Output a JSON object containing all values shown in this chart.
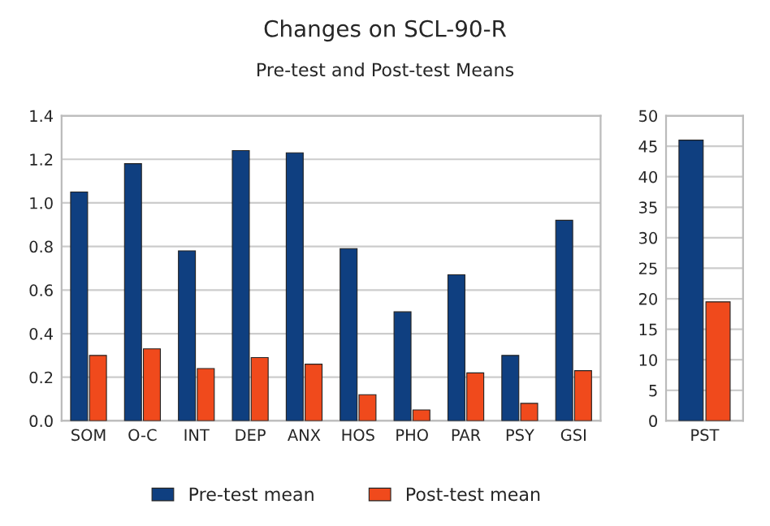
{
  "chart_data": [
    {
      "type": "bar",
      "title": "Changes on SCL-90-R",
      "subtitle": "Pre-test and Post-test Means",
      "categories": [
        "SOM",
        "O-C",
        "INT",
        "DEP",
        "ANX",
        "HOS",
        "PHO",
        "PAR",
        "PSY",
        "GSI"
      ],
      "series": [
        {
          "name": "Pre-test mean",
          "color": "#0f3f80",
          "values": [
            1.05,
            1.18,
            0.78,
            1.24,
            1.23,
            0.79,
            0.5,
            0.67,
            0.3,
            0.92
          ]
        },
        {
          "name": "Post-test mean",
          "color": "#f04a1c",
          "values": [
            0.3,
            0.33,
            0.24,
            0.29,
            0.26,
            0.12,
            0.05,
            0.22,
            0.08,
            0.23
          ]
        }
      ],
      "ylim": [
        0,
        1.4
      ],
      "yticks": [
        {
          "value": 0,
          "label": "0.0"
        },
        {
          "value": 0.2,
          "label": "0.2"
        },
        {
          "value": 0.4,
          "label": "0.4"
        },
        {
          "value": 0.6,
          "label": "0.6"
        },
        {
          "value": 0.8,
          "label": "0.8"
        },
        {
          "value": 1.0,
          "label": "1.0"
        },
        {
          "value": 1.2,
          "label": "1.2"
        },
        {
          "value": 1.4,
          "label": "1.4"
        }
      ],
      "grid": "y",
      "legend": "bottom"
    },
    {
      "type": "bar",
      "categories": [
        "PST"
      ],
      "series": [
        {
          "color": "#0f3f80",
          "values": [
            46
          ]
        },
        {
          "color": "#f04a1c",
          "values": [
            19.5
          ]
        }
      ],
      "ylim": [
        0,
        50
      ],
      "yticks": [
        0,
        5,
        10,
        15,
        20,
        25,
        30,
        35,
        40,
        45,
        50
      ],
      "grid": "y"
    }
  ]
}
